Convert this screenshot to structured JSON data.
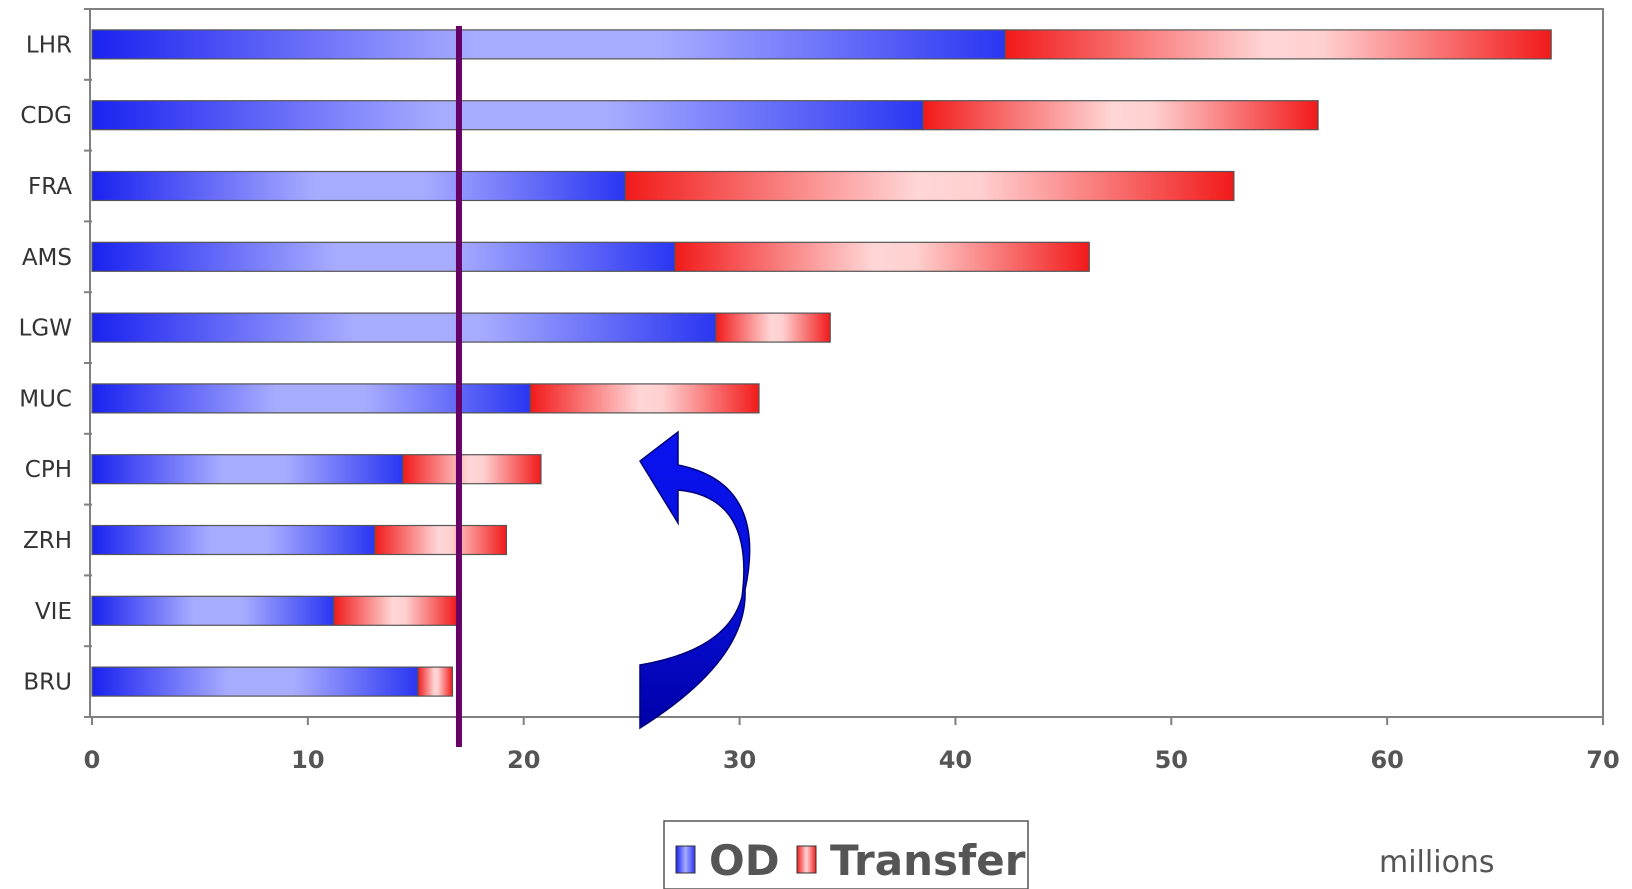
{
  "chart_data": {
    "type": "bar",
    "orientation": "horizontal",
    "stacked": true,
    "categories": [
      "LHR",
      "CDG",
      "FRA",
      "AMS",
      "LGW",
      "MUC",
      "CPH",
      "ZRH",
      "VIE",
      "BRU"
    ],
    "series": [
      {
        "name": "OD",
        "values": [
          42.3,
          38.5,
          24.7,
          27.0,
          28.9,
          20.3,
          14.4,
          13.1,
          11.2,
          15.1
        ]
      },
      {
        "name": "Transfer",
        "values": [
          25.3,
          18.3,
          28.2,
          19.2,
          5.3,
          10.6,
          6.4,
          6.1,
          5.7,
          1.6
        ]
      }
    ],
    "xlim": [
      0,
      70
    ],
    "xticks": [
      "0",
      "10",
      "20",
      "30",
      "40",
      "50",
      "60",
      "70"
    ],
    "unit_label": "millions",
    "reference_line_x": 17,
    "annotation": "curved-arrow",
    "legend_position": "bottom-center",
    "grid": false,
    "colors": {
      "OD": "#2a3cf5",
      "OD_light": "#a8acff",
      "Transfer": "#f21a1a",
      "Transfer_light": "#ffd2d2",
      "reference_line": "#660066",
      "arrow": "#0a12e6",
      "arrow_dark": "#0000b4"
    }
  }
}
